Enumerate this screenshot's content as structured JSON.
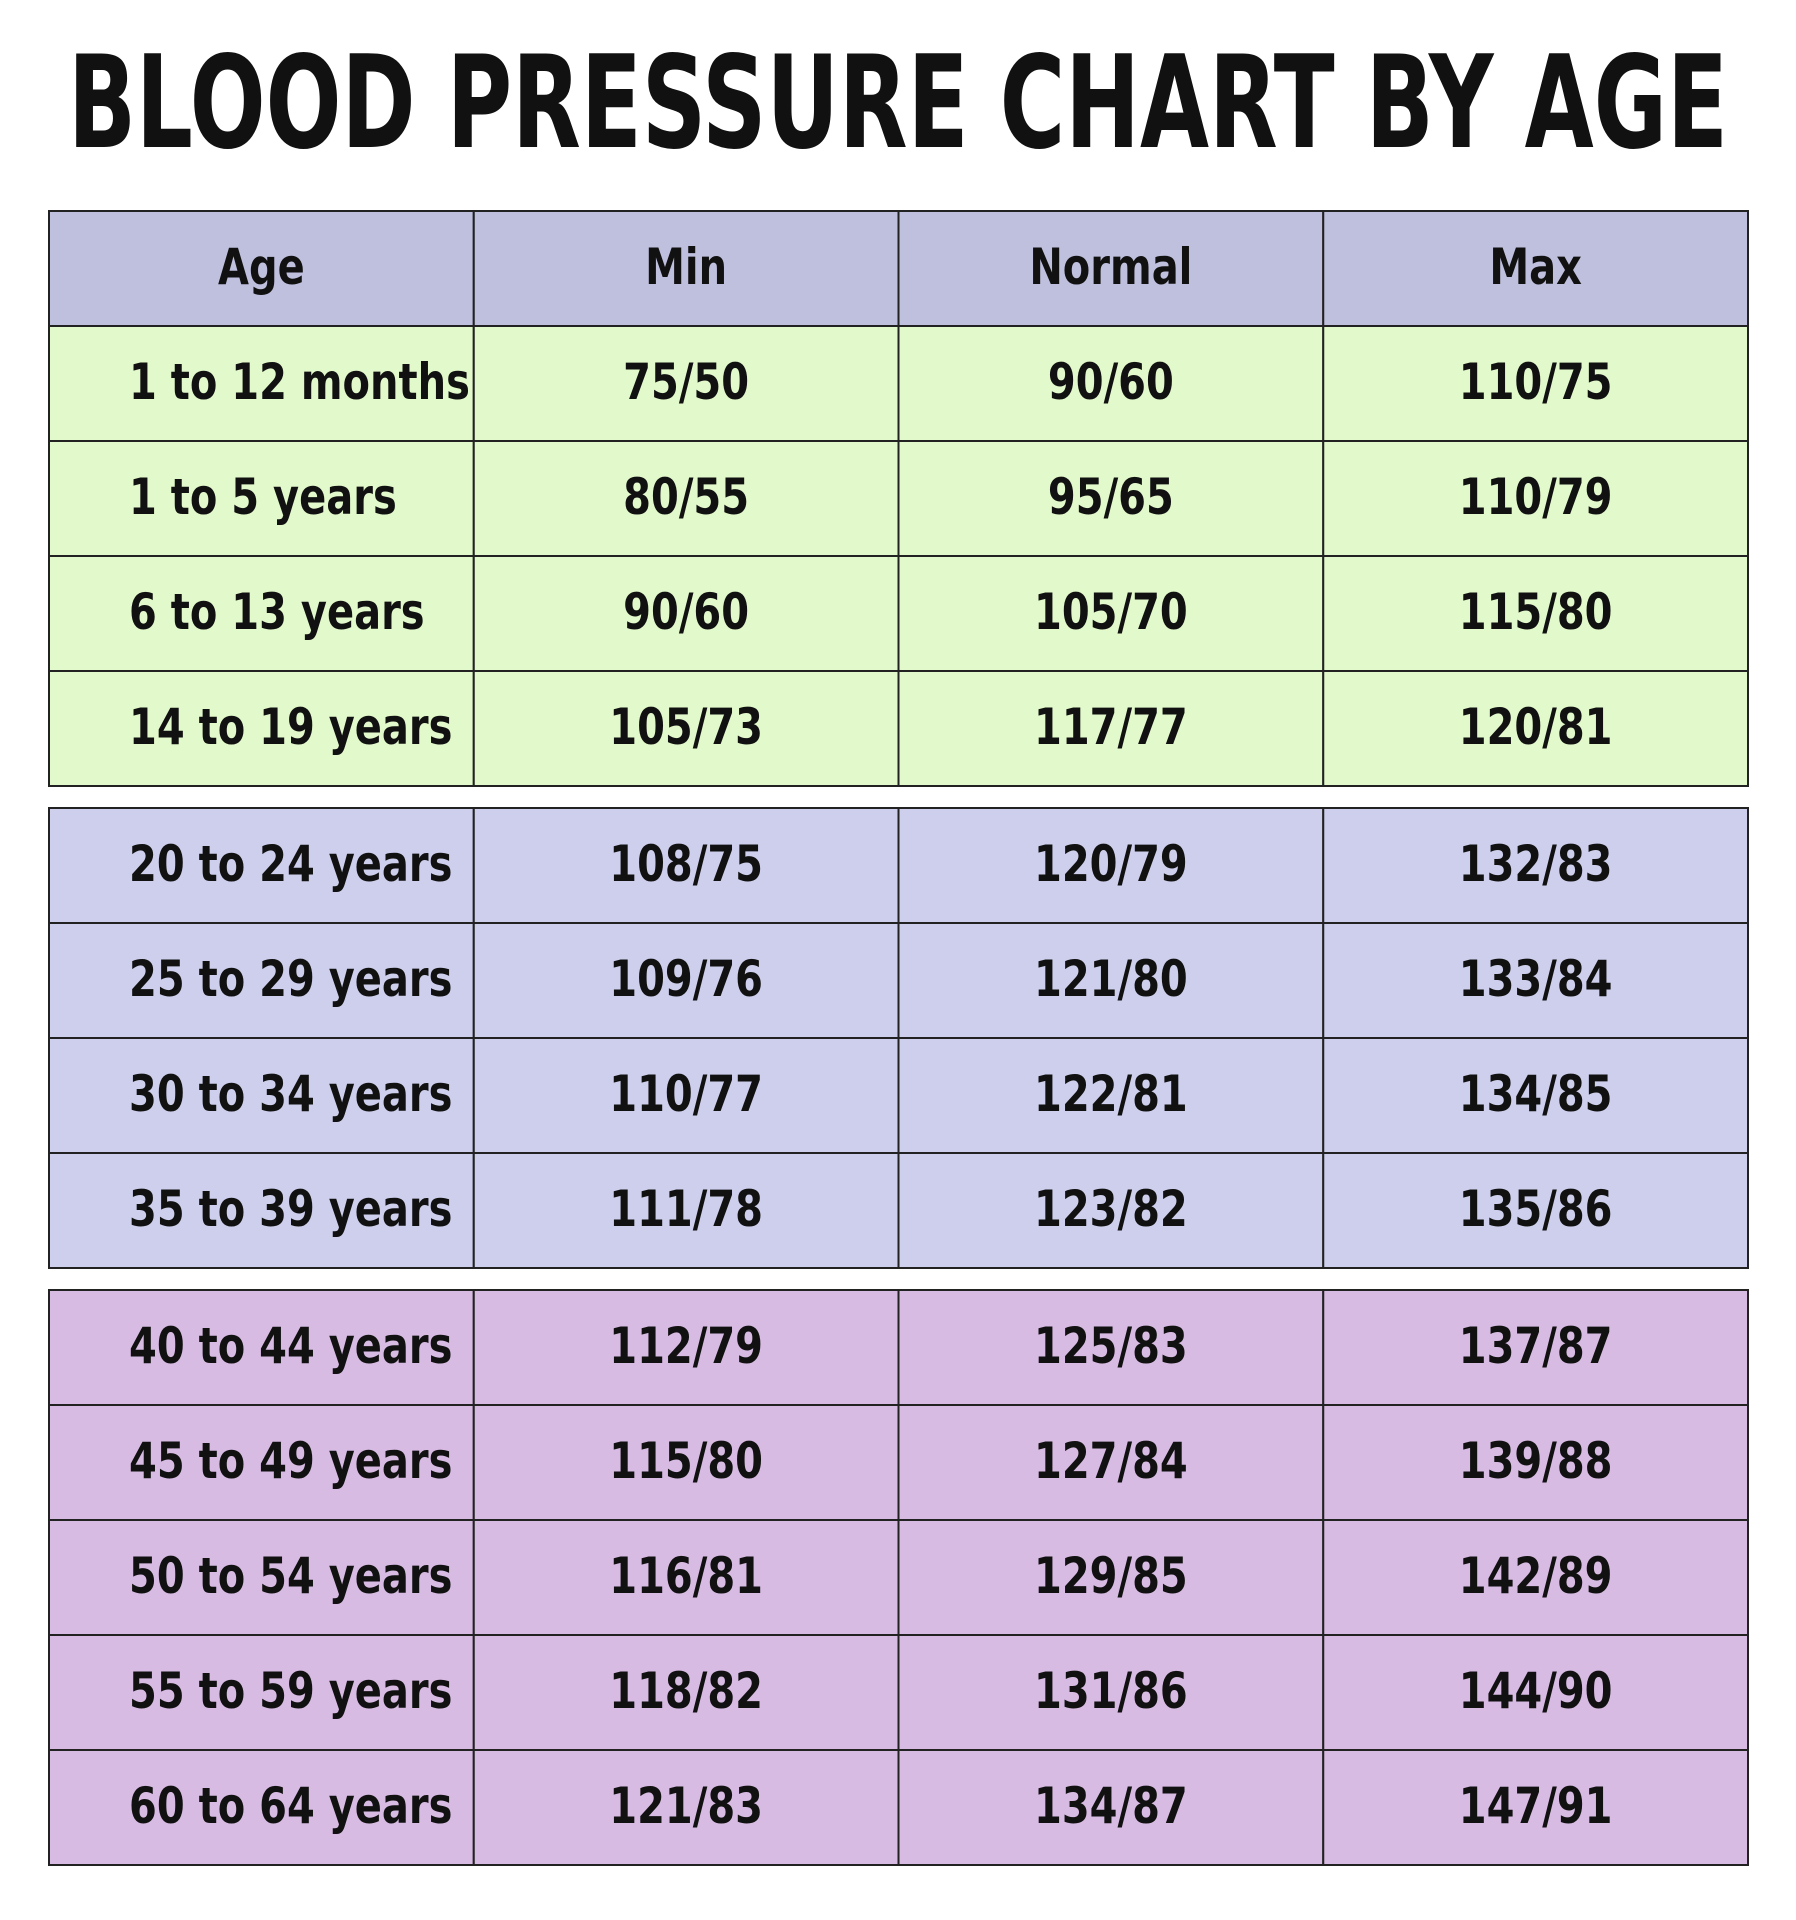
{
  "title": "BLOOD PRESSURE CHART BY AGE",
  "table": {
    "header": [
      "Age",
      "Min",
      "Normal",
      "Max"
    ],
    "groups": [
      {
        "rows": [
          [
            "1 to 12 months",
            "75/50",
            "90/60",
            "110/75"
          ],
          [
            "1 to 5 years",
            "80/55",
            "95/65",
            "110/79"
          ],
          [
            "6 to 13 years",
            "90/60",
            "105/70",
            "115/80"
          ],
          [
            "14 to 19 years",
            "105/73",
            "117/77",
            "120/81"
          ]
        ]
      },
      {
        "rows": [
          [
            "20 to 24 years",
            "108/75",
            "120/79",
            "132/83"
          ],
          [
            "25 to 29 years",
            "109/76",
            "121/80",
            "133/84"
          ],
          [
            "30 to 34 years",
            "110/77",
            "122/81",
            "134/85"
          ],
          [
            "35 to 39 years",
            "111/78",
            "123/82",
            "135/86"
          ]
        ]
      },
      {
        "rows": [
          [
            "40 to 44 years",
            "112/79",
            "125/83",
            "137/87"
          ],
          [
            "45 to 49 years",
            "115/80",
            "127/84",
            "139/88"
          ],
          [
            "50 to 54 years",
            "116/81",
            "129/85",
            "142/89"
          ],
          [
            "55 to 59 years",
            "118/82",
            "131/86",
            "144/90"
          ],
          [
            "60 to 64 years",
            "121/83",
            "134/87",
            "147/91"
          ]
        ]
      }
    ]
  }
}
